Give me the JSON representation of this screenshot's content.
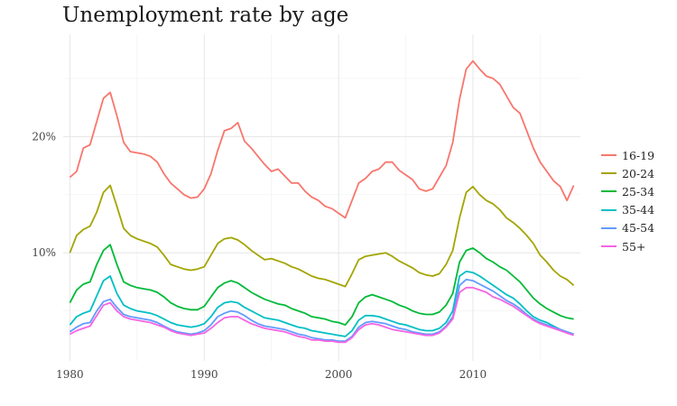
{
  "chart_data": {
    "type": "line",
    "title": "Unemployment rate by age",
    "xlabel": "",
    "ylabel": "",
    "xlim": [
      1979.5,
      2018.0
    ],
    "ylim": [
      0.007,
      0.288
    ],
    "x_ticks": [
      1980,
      1990,
      2000,
      2010
    ],
    "y_ticks": [
      0.1,
      0.2
    ],
    "y_tick_labels": [
      "10%",
      "20%"
    ],
    "grid": true,
    "legend_position": "right",
    "series": [
      {
        "name": "16-19",
        "color": "#F8766D",
        "x": [
          1980.0,
          1980.5,
          1981.0,
          1981.5,
          1982.0,
          1982.5,
          1983.0,
          1983.5,
          1984.0,
          1984.5,
          1985.0,
          1985.5,
          1986.0,
          1986.5,
          1987.0,
          1987.5,
          1988.0,
          1988.5,
          1989.0,
          1989.5,
          1990.0,
          1990.5,
          1991.0,
          1991.5,
          1992.0,
          1992.5,
          1993.0,
          1993.5,
          1994.0,
          1994.5,
          1995.0,
          1995.5,
          1996.0,
          1996.5,
          1997.0,
          1997.5,
          1998.0,
          1998.5,
          1999.0,
          1999.5,
          2000.0,
          2000.5,
          2001.0,
          2001.5,
          2002.0,
          2002.5,
          2003.0,
          2003.5,
          2004.0,
          2004.5,
          2005.0,
          2005.5,
          2006.0,
          2006.5,
          2007.0,
          2007.5,
          2008.0,
          2008.5,
          2009.0,
          2009.5,
          2010.0,
          2010.5,
          2011.0,
          2011.5,
          2012.0,
          2012.5,
          2013.0,
          2013.5,
          2014.0,
          2014.5,
          2015.0,
          2015.5,
          2016.0,
          2016.5,
          2017.0,
          2017.5
        ],
        "y": [
          0.165,
          0.17,
          0.19,
          0.193,
          0.213,
          0.233,
          0.238,
          0.218,
          0.195,
          0.187,
          0.186,
          0.185,
          0.183,
          0.178,
          0.168,
          0.16,
          0.155,
          0.15,
          0.147,
          0.148,
          0.155,
          0.168,
          0.188,
          0.205,
          0.207,
          0.212,
          0.196,
          0.19,
          0.183,
          0.176,
          0.17,
          0.172,
          0.166,
          0.16,
          0.16,
          0.153,
          0.148,
          0.145,
          0.14,
          0.138,
          0.134,
          0.13,
          0.145,
          0.16,
          0.164,
          0.17,
          0.172,
          0.178,
          0.178,
          0.171,
          0.167,
          0.163,
          0.155,
          0.153,
          0.155,
          0.165,
          0.175,
          0.195,
          0.232,
          0.258,
          0.265,
          0.258,
          0.252,
          0.25,
          0.245,
          0.235,
          0.225,
          0.22,
          0.205,
          0.19,
          0.178,
          0.17,
          0.162,
          0.157,
          0.145,
          0.158
        ]
      },
      {
        "name": "20-24",
        "color": "#A3A500",
        "x": [
          1980.0,
          1980.5,
          1981.0,
          1981.5,
          1982.0,
          1982.5,
          1983.0,
          1983.5,
          1984.0,
          1984.5,
          1985.0,
          1985.5,
          1986.0,
          1986.5,
          1987.0,
          1987.5,
          1988.0,
          1988.5,
          1989.0,
          1989.5,
          1990.0,
          1990.5,
          1991.0,
          1991.5,
          1992.0,
          1992.5,
          1993.0,
          1993.5,
          1994.0,
          1994.5,
          1995.0,
          1995.5,
          1996.0,
          1996.5,
          1997.0,
          1997.5,
          1998.0,
          1998.5,
          1999.0,
          1999.5,
          2000.0,
          2000.5,
          2001.0,
          2001.5,
          2002.0,
          2002.5,
          2003.0,
          2003.5,
          2004.0,
          2004.5,
          2005.0,
          2005.5,
          2006.0,
          2006.5,
          2007.0,
          2007.5,
          2008.0,
          2008.5,
          2009.0,
          2009.5,
          2010.0,
          2010.5,
          2011.0,
          2011.5,
          2012.0,
          2012.5,
          2013.0,
          2013.5,
          2014.0,
          2014.5,
          2015.0,
          2015.5,
          2016.0,
          2016.5,
          2017.0,
          2017.5
        ],
        "y": [
          0.1,
          0.115,
          0.12,
          0.123,
          0.135,
          0.152,
          0.158,
          0.14,
          0.121,
          0.115,
          0.112,
          0.11,
          0.108,
          0.105,
          0.098,
          0.09,
          0.088,
          0.086,
          0.085,
          0.086,
          0.088,
          0.098,
          0.108,
          0.112,
          0.113,
          0.111,
          0.107,
          0.102,
          0.098,
          0.094,
          0.095,
          0.093,
          0.091,
          0.088,
          0.086,
          0.083,
          0.08,
          0.078,
          0.077,
          0.075,
          0.073,
          0.071,
          0.082,
          0.094,
          0.097,
          0.098,
          0.099,
          0.1,
          0.097,
          0.093,
          0.09,
          0.087,
          0.083,
          0.081,
          0.08,
          0.082,
          0.09,
          0.102,
          0.13,
          0.152,
          0.157,
          0.15,
          0.145,
          0.142,
          0.137,
          0.13,
          0.126,
          0.121,
          0.115,
          0.108,
          0.098,
          0.092,
          0.085,
          0.08,
          0.077,
          0.072
        ]
      },
      {
        "name": "25-34",
        "color": "#00BA38",
        "x": [
          1980.0,
          1980.5,
          1981.0,
          1981.5,
          1982.0,
          1982.5,
          1983.0,
          1983.5,
          1984.0,
          1984.5,
          1985.0,
          1985.5,
          1986.0,
          1986.5,
          1987.0,
          1987.5,
          1988.0,
          1988.5,
          1989.0,
          1989.5,
          1990.0,
          1990.5,
          1991.0,
          1991.5,
          1992.0,
          1992.5,
          1993.0,
          1993.5,
          1994.0,
          1994.5,
          1995.0,
          1995.5,
          1996.0,
          1996.5,
          1997.0,
          1997.5,
          1998.0,
          1998.5,
          1999.0,
          1999.5,
          2000.0,
          2000.5,
          2001.0,
          2001.5,
          2002.0,
          2002.5,
          2003.0,
          2003.5,
          2004.0,
          2004.5,
          2005.0,
          2005.5,
          2006.0,
          2006.5,
          2007.0,
          2007.5,
          2008.0,
          2008.5,
          2009.0,
          2009.5,
          2010.0,
          2010.5,
          2011.0,
          2011.5,
          2012.0,
          2012.5,
          2013.0,
          2013.5,
          2014.0,
          2014.5,
          2015.0,
          2015.5,
          2016.0,
          2016.5,
          2017.0,
          2017.5
        ],
        "y": [
          0.057,
          0.068,
          0.073,
          0.075,
          0.09,
          0.102,
          0.107,
          0.09,
          0.075,
          0.072,
          0.07,
          0.069,
          0.068,
          0.066,
          0.062,
          0.057,
          0.054,
          0.052,
          0.051,
          0.051,
          0.054,
          0.062,
          0.07,
          0.074,
          0.076,
          0.074,
          0.07,
          0.066,
          0.063,
          0.06,
          0.058,
          0.056,
          0.055,
          0.052,
          0.05,
          0.048,
          0.045,
          0.044,
          0.043,
          0.041,
          0.04,
          0.038,
          0.045,
          0.057,
          0.062,
          0.064,
          0.062,
          0.06,
          0.058,
          0.055,
          0.053,
          0.05,
          0.048,
          0.047,
          0.047,
          0.049,
          0.055,
          0.065,
          0.092,
          0.102,
          0.104,
          0.1,
          0.095,
          0.092,
          0.088,
          0.085,
          0.08,
          0.075,
          0.068,
          0.061,
          0.056,
          0.052,
          0.049,
          0.046,
          0.044,
          0.043
        ]
      },
      {
        "name": "35-44",
        "color": "#00BFC4",
        "x": [
          1980.0,
          1980.5,
          1981.0,
          1981.5,
          1982.0,
          1982.5,
          1983.0,
          1983.5,
          1984.0,
          1984.5,
          1985.0,
          1985.5,
          1986.0,
          1986.5,
          1987.0,
          1987.5,
          1988.0,
          1988.5,
          1989.0,
          1989.5,
          1990.0,
          1990.5,
          1991.0,
          1991.5,
          1992.0,
          1992.5,
          1993.0,
          1993.5,
          1994.0,
          1994.5,
          1995.0,
          1995.5,
          1996.0,
          1996.5,
          1997.0,
          1997.5,
          1998.0,
          1998.5,
          1999.0,
          1999.5,
          2000.0,
          2000.5,
          2001.0,
          2001.5,
          2002.0,
          2002.5,
          2003.0,
          2003.5,
          2004.0,
          2004.5,
          2005.0,
          2005.5,
          2006.0,
          2006.5,
          2007.0,
          2007.5,
          2008.0,
          2008.5,
          2009.0,
          2009.5,
          2010.0,
          2010.5,
          2011.0,
          2011.5,
          2012.0,
          2012.5,
          2013.0,
          2013.5,
          2014.0,
          2014.5,
          2015.0,
          2015.5,
          2016.0,
          2016.5,
          2017.0,
          2017.5
        ],
        "y": [
          0.038,
          0.045,
          0.048,
          0.05,
          0.063,
          0.076,
          0.08,
          0.065,
          0.055,
          0.052,
          0.05,
          0.049,
          0.048,
          0.046,
          0.043,
          0.04,
          0.038,
          0.037,
          0.036,
          0.037,
          0.039,
          0.045,
          0.053,
          0.057,
          0.058,
          0.057,
          0.053,
          0.05,
          0.047,
          0.044,
          0.043,
          0.042,
          0.04,
          0.038,
          0.036,
          0.035,
          0.033,
          0.032,
          0.031,
          0.03,
          0.029,
          0.028,
          0.033,
          0.042,
          0.046,
          0.046,
          0.045,
          0.043,
          0.041,
          0.039,
          0.038,
          0.036,
          0.034,
          0.033,
          0.033,
          0.035,
          0.04,
          0.05,
          0.08,
          0.084,
          0.083,
          0.08,
          0.076,
          0.072,
          0.068,
          0.064,
          0.061,
          0.056,
          0.05,
          0.045,
          0.042,
          0.04,
          0.037,
          0.034,
          0.032,
          0.03
        ]
      },
      {
        "name": "45-54",
        "color": "#619CFF",
        "x": [
          1980.0,
          1980.5,
          1981.0,
          1981.5,
          1982.0,
          1982.5,
          1983.0,
          1983.5,
          1984.0,
          1984.5,
          1985.0,
          1985.5,
          1986.0,
          1986.5,
          1987.0,
          1987.5,
          1988.0,
          1988.5,
          1989.0,
          1989.5,
          1990.0,
          1990.5,
          1991.0,
          1991.5,
          1992.0,
          1992.5,
          1993.0,
          1993.5,
          1994.0,
          1994.5,
          1995.0,
          1995.5,
          1996.0,
          1996.5,
          1997.0,
          1997.5,
          1998.0,
          1998.5,
          1999.0,
          1999.5,
          2000.0,
          2000.5,
          2001.0,
          2001.5,
          2002.0,
          2002.5,
          2003.0,
          2003.5,
          2004.0,
          2004.5,
          2005.0,
          2005.5,
          2006.0,
          2006.5,
          2007.0,
          2007.5,
          2008.0,
          2008.5,
          2009.0,
          2009.5,
          2010.0,
          2010.5,
          2011.0,
          2011.5,
          2012.0,
          2012.5,
          2013.0,
          2013.5,
          2014.0,
          2014.5,
          2015.0,
          2015.5,
          2016.0,
          2016.5,
          2017.0,
          2017.5
        ],
        "y": [
          0.032,
          0.036,
          0.039,
          0.04,
          0.05,
          0.058,
          0.06,
          0.053,
          0.047,
          0.045,
          0.044,
          0.043,
          0.042,
          0.04,
          0.037,
          0.034,
          0.032,
          0.031,
          0.03,
          0.031,
          0.033,
          0.038,
          0.045,
          0.048,
          0.05,
          0.049,
          0.046,
          0.042,
          0.039,
          0.037,
          0.036,
          0.035,
          0.034,
          0.032,
          0.03,
          0.029,
          0.027,
          0.026,
          0.025,
          0.025,
          0.024,
          0.024,
          0.028,
          0.036,
          0.04,
          0.041,
          0.04,
          0.039,
          0.037,
          0.035,
          0.034,
          0.032,
          0.031,
          0.03,
          0.03,
          0.032,
          0.037,
          0.045,
          0.072,
          0.077,
          0.076,
          0.073,
          0.07,
          0.067,
          0.063,
          0.059,
          0.056,
          0.052,
          0.047,
          0.043,
          0.04,
          0.038,
          0.036,
          0.034,
          0.032,
          0.03
        ]
      },
      {
        "name": "55+",
        "color": "#F564E3",
        "x": [
          1980.0,
          1980.5,
          1981.0,
          1981.5,
          1982.0,
          1982.5,
          1983.0,
          1983.5,
          1984.0,
          1984.5,
          1985.0,
          1985.5,
          1986.0,
          1986.5,
          1987.0,
          1987.5,
          1988.0,
          1988.5,
          1989.0,
          1989.5,
          1990.0,
          1990.5,
          1991.0,
          1991.5,
          1992.0,
          1992.5,
          1993.0,
          1993.5,
          1994.0,
          1994.5,
          1995.0,
          1995.5,
          1996.0,
          1996.5,
          1997.0,
          1997.5,
          1998.0,
          1998.5,
          1999.0,
          1999.5,
          2000.0,
          2000.5,
          2001.0,
          2001.5,
          2002.0,
          2002.5,
          2003.0,
          2003.5,
          2004.0,
          2004.5,
          2005.0,
          2005.5,
          2006.0,
          2006.5,
          2007.0,
          2007.5,
          2008.0,
          2008.5,
          2009.0,
          2009.5,
          2010.0,
          2010.5,
          2011.0,
          2011.5,
          2012.0,
          2012.5,
          2013.0,
          2013.5,
          2014.0,
          2014.5,
          2015.0,
          2015.5,
          2016.0,
          2016.5,
          2017.0,
          2017.5
        ],
        "y": [
          0.03,
          0.033,
          0.035,
          0.037,
          0.046,
          0.055,
          0.057,
          0.05,
          0.045,
          0.043,
          0.042,
          0.041,
          0.04,
          0.038,
          0.036,
          0.033,
          0.031,
          0.03,
          0.029,
          0.03,
          0.031,
          0.035,
          0.04,
          0.044,
          0.045,
          0.045,
          0.042,
          0.039,
          0.037,
          0.035,
          0.034,
          0.033,
          0.032,
          0.03,
          0.028,
          0.027,
          0.025,
          0.025,
          0.024,
          0.024,
          0.023,
          0.023,
          0.027,
          0.034,
          0.038,
          0.039,
          0.038,
          0.036,
          0.034,
          0.033,
          0.032,
          0.031,
          0.03,
          0.029,
          0.029,
          0.031,
          0.036,
          0.043,
          0.066,
          0.07,
          0.07,
          0.068,
          0.066,
          0.062,
          0.06,
          0.057,
          0.054,
          0.05,
          0.046,
          0.042,
          0.039,
          0.037,
          0.035,
          0.033,
          0.031,
          0.029
        ]
      }
    ]
  }
}
